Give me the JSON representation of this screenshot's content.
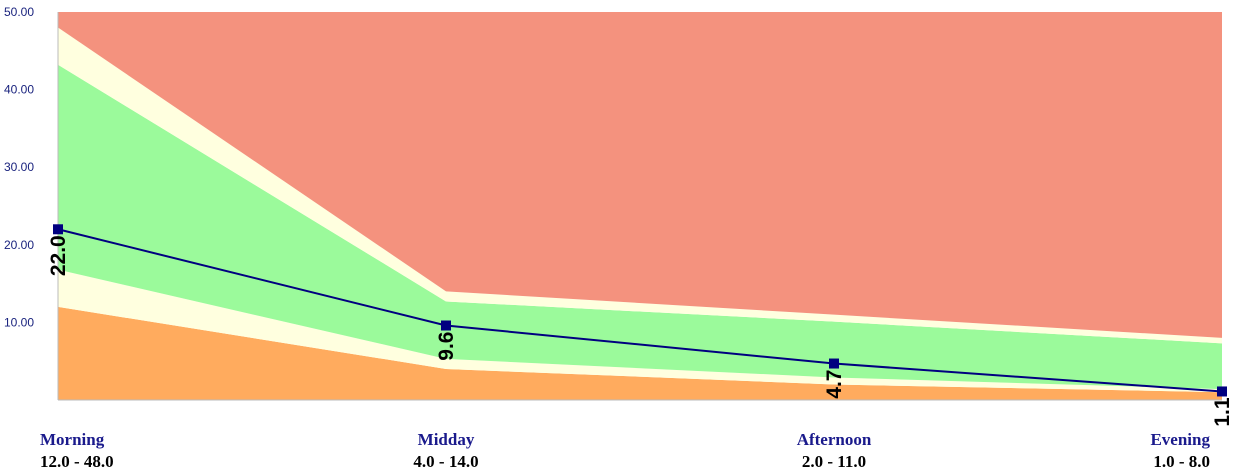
{
  "chart_data": {
    "type": "area",
    "title": "",
    "xlabel": "",
    "ylabel": "",
    "ylim": [
      0,
      50
    ],
    "yticks": [
      "10.00",
      "20.00",
      "30.00",
      "40.00",
      "50.00"
    ],
    "y_tick_values": [
      10,
      20,
      30,
      40,
      50
    ],
    "categories": [
      "Morning",
      "Midday",
      "Afternoon",
      "Evening"
    ],
    "range_labels": [
      "12.0 - 48.0",
      "4.0 - 14.0",
      "2.0 - 11.0",
      "1.0 - 8.0"
    ],
    "bands": {
      "bottom_upper": [
        12.0,
        4.0,
        2.0,
        1.0
      ],
      "lower_margin_upper": [
        16.8,
        5.3,
        2.9,
        1.4
      ],
      "normal_upper": [
        43.2,
        12.7,
        10.1,
        7.3
      ],
      "upper_margin_upper": [
        48.0,
        14.0,
        11.0,
        8.0
      ],
      "top_upper": [
        50,
        50,
        50,
        50
      ]
    },
    "series": [
      {
        "values": [
          22.0,
          9.6,
          4.7,
          1.1
        ],
        "labels": [
          "22.0",
          "9.6",
          "4.7",
          "1.1"
        ]
      }
    ],
    "colors": {
      "low": "#ffab5e",
      "margin": "#ffffdf",
      "normal": "#9bfa9b",
      "high": "#f4927e",
      "line": "#000080",
      "axis": "#bbbbbb"
    },
    "grid": false,
    "legend": "none"
  }
}
